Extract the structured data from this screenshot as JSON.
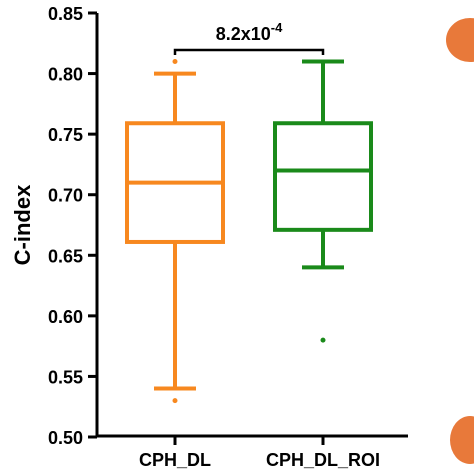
{
  "chart_data": {
    "type": "box",
    "ylabel": "C-index",
    "ylim": [
      0.5,
      0.85
    ],
    "yticks": [
      0.5,
      0.55,
      0.6,
      0.65,
      0.7,
      0.75,
      0.8,
      0.85
    ],
    "ytick_labels": [
      "0.50",
      "0.55",
      "0.60",
      "0.65",
      "0.70",
      "0.75",
      "0.80",
      "0.85"
    ],
    "categories": [
      "CPH_DL",
      "CPH_DL_ROI"
    ],
    "boxes": [
      {
        "category": "CPH_DL",
        "color": "#F7881F",
        "whisker_low": 0.54,
        "q1": 0.661,
        "median": 0.71,
        "q3": 0.759,
        "whisker_high": 0.8,
        "outliers": [
          0.53,
          0.81
        ]
      },
      {
        "category": "CPH_DL_ROI",
        "color": "#1A8A1A",
        "whisker_low": 0.64,
        "q1": 0.671,
        "median": 0.72,
        "q3": 0.759,
        "whisker_high": 0.81,
        "outliers": [
          0.58
        ]
      }
    ],
    "annotation": {
      "base": "8.2x10",
      "exponent": "-4",
      "between": [
        "CPH_DL",
        "CPH_DL_ROI"
      ]
    },
    "grid": false,
    "legend": "none"
  },
  "decor": {
    "shape_color": "#E8793A"
  }
}
